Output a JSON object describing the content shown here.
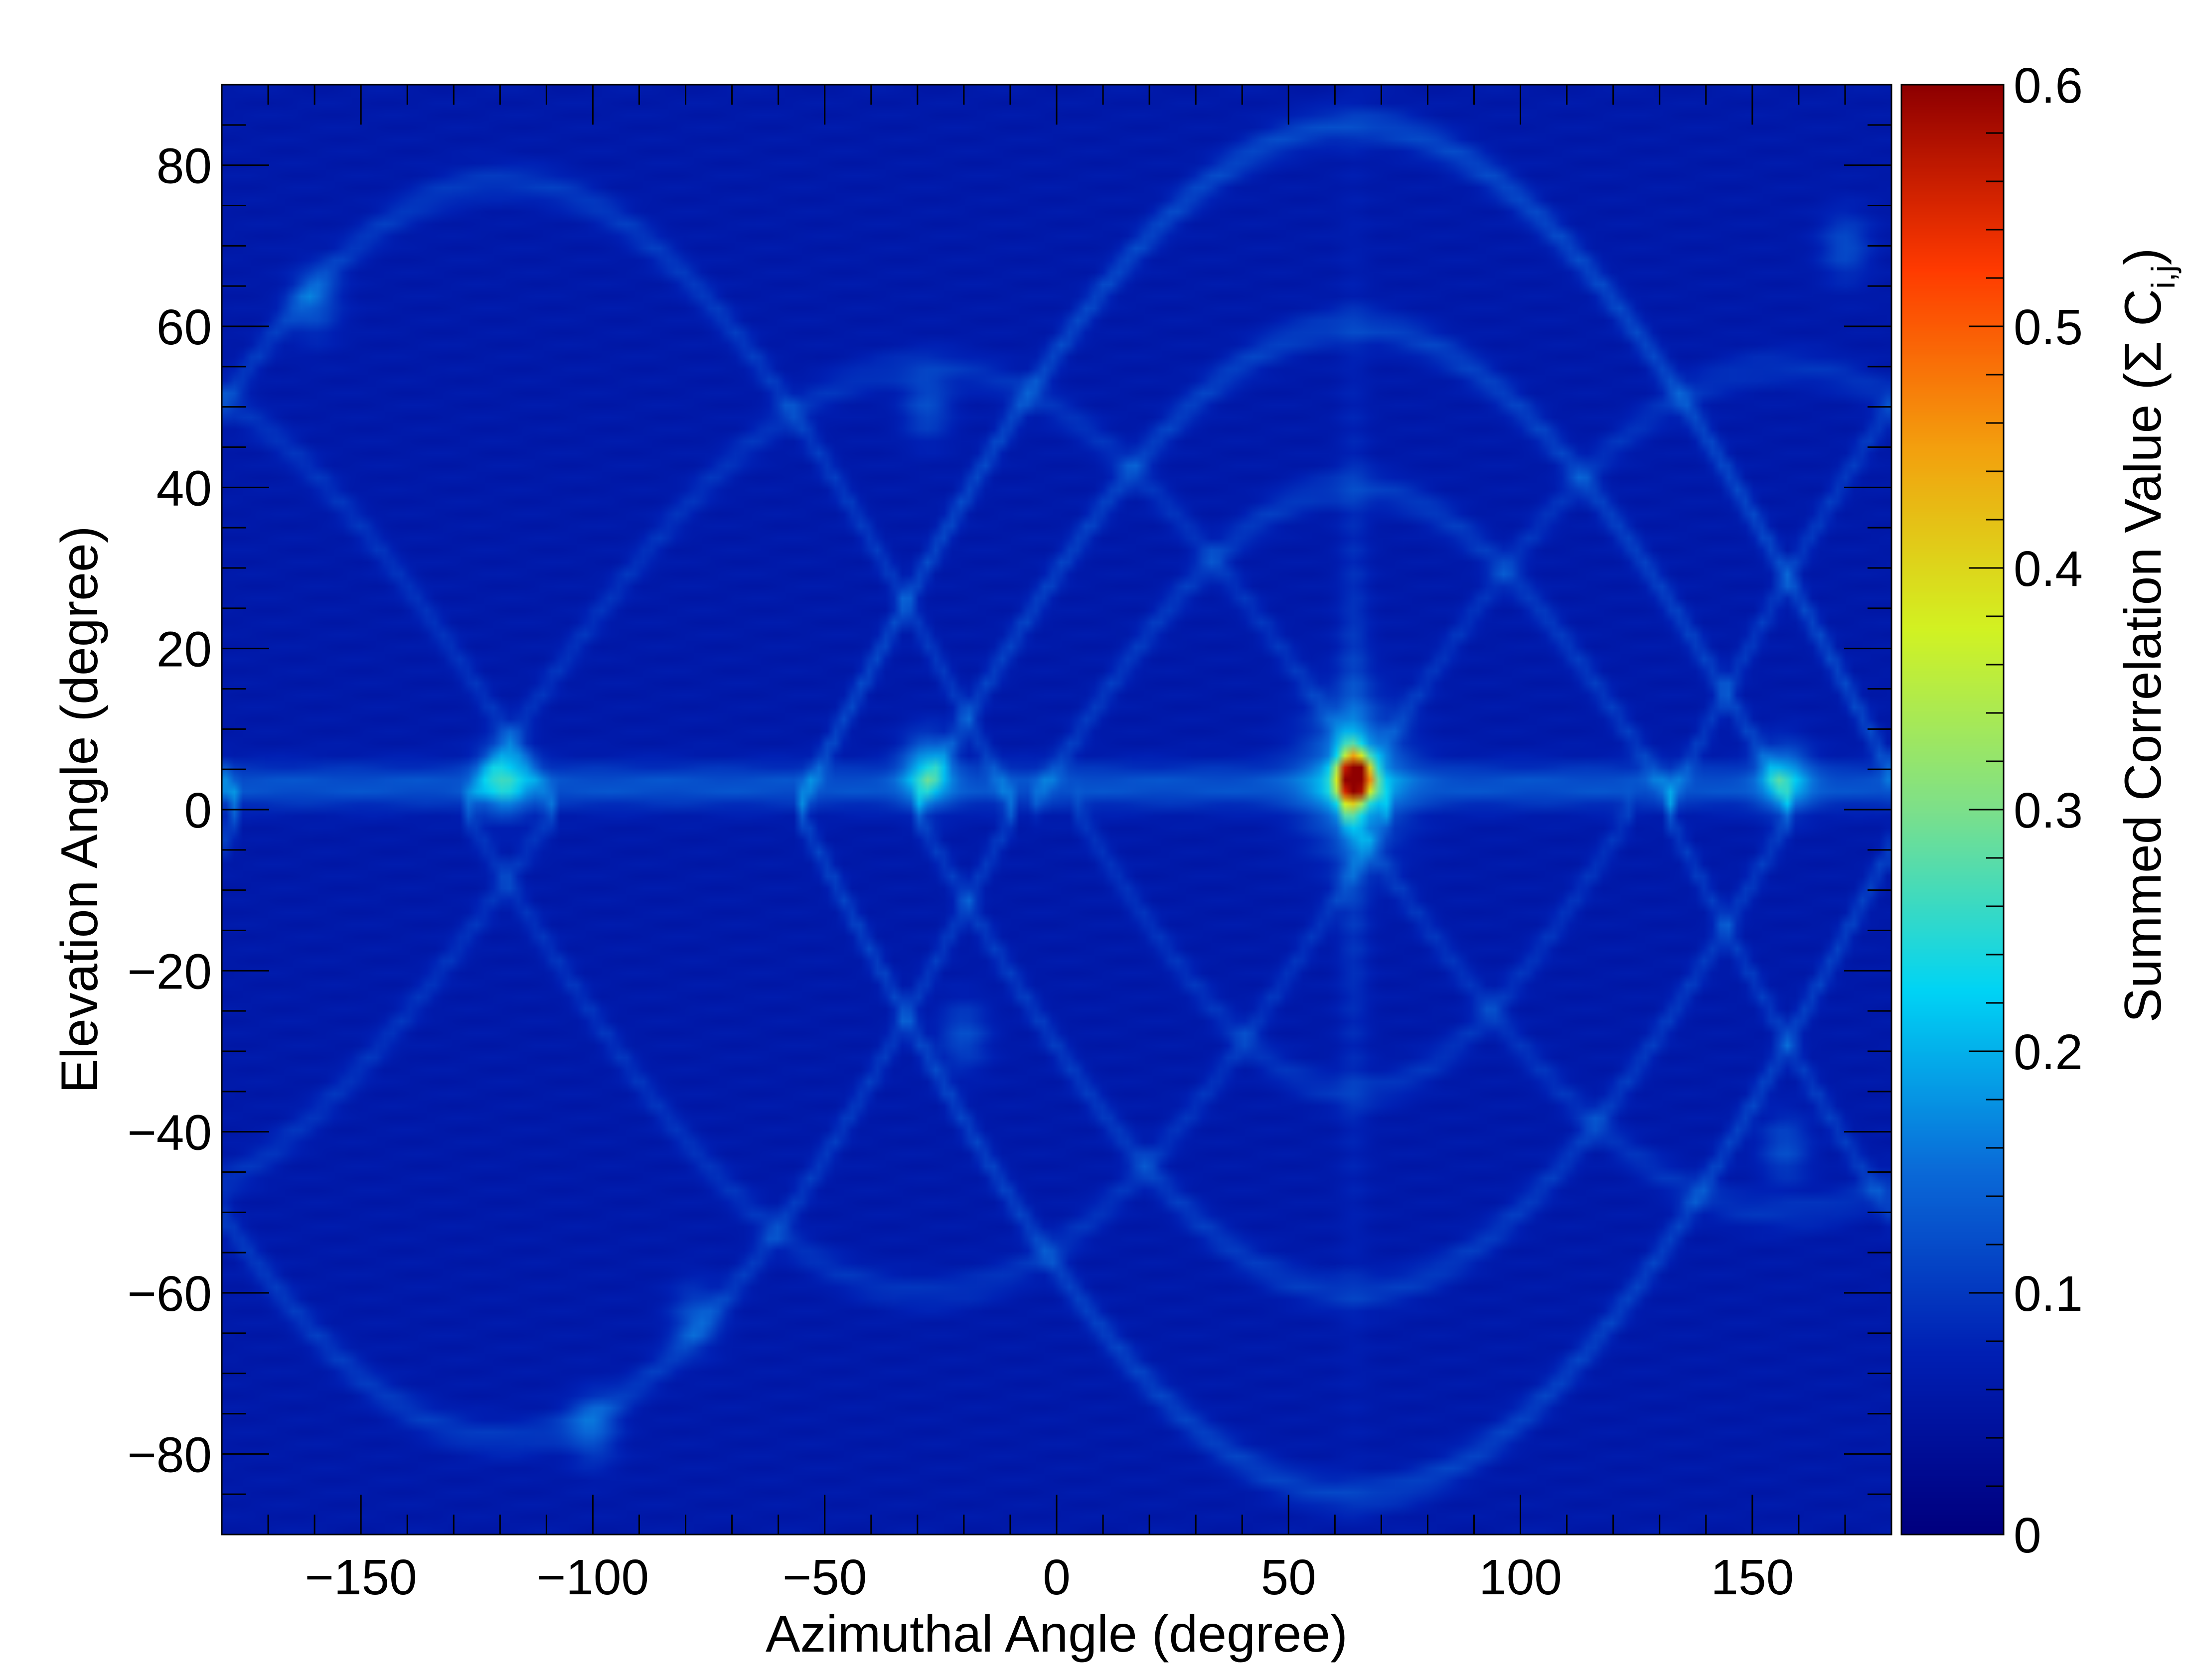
{
  "chart_data": {
    "type": "heatmap",
    "title": "",
    "xlabel": "Azimuthal Angle (degree)",
    "ylabel": "Elevation Angle (degree)",
    "colorbar_label": "Summed Correlation Value (Σ C",
    "colorbar_label_subscript": "i,j",
    "colorbar_label_close": ")",
    "xlim": [
      -180,
      180
    ],
    "ylim": [
      -90,
      90
    ],
    "zlim": [
      0,
      0.6
    ],
    "x_ticks": [
      -150,
      -100,
      -50,
      0,
      50,
      100,
      150
    ],
    "x_tick_labels": [
      "−150",
      "−100",
      "−50",
      "0",
      "50",
      "100",
      "150"
    ],
    "y_ticks": [
      -80,
      -60,
      -40,
      -20,
      0,
      20,
      40,
      60,
      80
    ],
    "y_tick_labels": [
      "−80",
      "−60",
      "−40",
      "−20",
      "0",
      "20",
      "40",
      "60",
      "80"
    ],
    "z_ticks": [
      0,
      0.1,
      0.2,
      0.3,
      0.4,
      0.5,
      0.6
    ],
    "z_tick_labels": [
      "0",
      "0.1",
      "0.2",
      "0.3",
      "0.4",
      "0.5",
      "0.6"
    ],
    "background_value": 0.06,
    "peak": {
      "azimuth": 64,
      "elevation": 4,
      "value": 0.6
    },
    "bright_spots": [
      {
        "azimuth": -119,
        "elevation": 4,
        "value": 0.2
      },
      {
        "azimuth": -28,
        "elevation": 5,
        "value": 0.19
      },
      {
        "azimuth": 157,
        "elevation": 4,
        "value": 0.17
      },
      {
        "azimuth": -160,
        "elevation": 63,
        "value": 0.13
      },
      {
        "azimuth": -100,
        "elevation": -77,
        "value": 0.13
      },
      {
        "azimuth": -78,
        "elevation": -63,
        "value": 0.12
      },
      {
        "azimuth": -28,
        "elevation": 50,
        "value": 0.12
      },
      {
        "azimuth": 170,
        "elevation": 70,
        "value": 0.12
      },
      {
        "azimuth": -20,
        "elevation": -28,
        "value": 0.12
      },
      {
        "azimuth": 157,
        "elevation": -42,
        "value": 0.12
      }
    ],
    "arcs": [
      {
        "center_azimuth": 64,
        "amplitude": 85,
        "half_width": 120,
        "value": 0.14
      },
      {
        "center_azimuth": 64,
        "amplitude": 60,
        "half_width": 95,
        "value": 0.13
      },
      {
        "center_azimuth": 64,
        "amplitude": 40,
        "half_width": 70,
        "value": 0.12
      },
      {
        "center_azimuth": 64,
        "amplitude": -85,
        "half_width": 120,
        "value": 0.13
      },
      {
        "center_azimuth": 64,
        "amplitude": -60,
        "half_width": 95,
        "value": 0.12
      },
      {
        "center_azimuth": 64,
        "amplitude": -35,
        "half_width": 60,
        "value": 0.11
      },
      {
        "center_azimuth": -119,
        "amplitude": 78,
        "half_width": 110,
        "value": 0.12
      },
      {
        "center_azimuth": -119,
        "amplitude": -78,
        "half_width": 110,
        "value": 0.12
      },
      {
        "center_azimuth": -28,
        "amplitude": 55,
        "half_width": 100,
        "value": 0.11
      },
      {
        "center_azimuth": -28,
        "amplitude": -60,
        "half_width": 100,
        "value": 0.11
      },
      {
        "center_azimuth": 157,
        "amplitude": 55,
        "half_width": 95,
        "value": 0.11
      },
      {
        "center_azimuth": 157,
        "amplitude": -50,
        "half_width": 95,
        "value": 0.11
      }
    ],
    "horizontal_band": {
      "elevation": 3,
      "value": 0.13
    },
    "colormap": [
      "#00007f",
      "#0020b4",
      "#0a6ad8",
      "#00d4f5",
      "#7de08a",
      "#d2f222",
      "#f3a00e",
      "#ff3a00",
      "#8f0000"
    ],
    "grid": false,
    "legend": "none"
  }
}
